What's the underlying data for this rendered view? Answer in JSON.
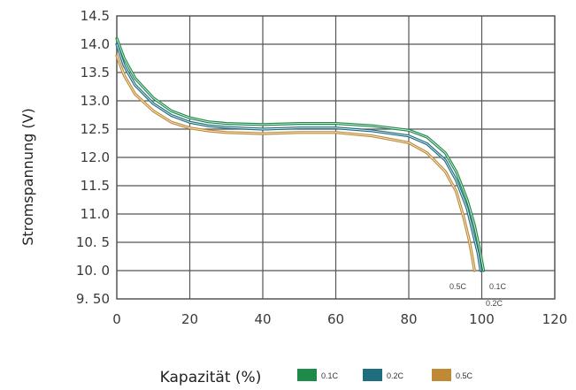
{
  "chart_data": {
    "type": "line",
    "xlabel": "Kapazität (%)",
    "ylabel": "Stromspannung (V)",
    "xlim": [
      0,
      120
    ],
    "ylim": [
      9.5,
      14.5
    ],
    "x_ticks": [
      "0",
      "20",
      "40",
      "60",
      "80",
      "100",
      "120"
    ],
    "y_ticks": [
      "9. 50",
      "10. 0",
      "10. 5",
      "11.0",
      "11.5",
      "12.0",
      "12.5",
      "13.0",
      "13.5",
      "14.0",
      "14.5"
    ],
    "grid": true,
    "legend_position": "bottom",
    "series": [
      {
        "name": "0.1C",
        "color": "#1e8a4a",
        "points": [
          [
            0,
            14.1
          ],
          [
            2,
            13.75
          ],
          [
            5,
            13.4
          ],
          [
            10,
            13.05
          ],
          [
            15,
            12.82
          ],
          [
            20,
            12.7
          ],
          [
            25,
            12.63
          ],
          [
            30,
            12.6
          ],
          [
            40,
            12.58
          ],
          [
            50,
            12.6
          ],
          [
            60,
            12.6
          ],
          [
            70,
            12.56
          ],
          [
            80,
            12.48
          ],
          [
            85,
            12.36
          ],
          [
            90,
            12.08
          ],
          [
            93,
            11.75
          ],
          [
            96,
            11.25
          ],
          [
            98,
            10.8
          ],
          [
            99.5,
            10.35
          ],
          [
            100.5,
            10.0
          ]
        ]
      },
      {
        "name": "0.2C",
        "color": "#1f6e80",
        "points": [
          [
            0,
            14.0
          ],
          [
            2,
            13.62
          ],
          [
            5,
            13.28
          ],
          [
            10,
            12.95
          ],
          [
            15,
            12.74
          ],
          [
            20,
            12.62
          ],
          [
            25,
            12.56
          ],
          [
            30,
            12.53
          ],
          [
            40,
            12.5
          ],
          [
            50,
            12.52
          ],
          [
            60,
            12.52
          ],
          [
            70,
            12.47
          ],
          [
            80,
            12.38
          ],
          [
            85,
            12.24
          ],
          [
            90,
            11.95
          ],
          [
            93,
            11.6
          ],
          [
            96,
            11.1
          ],
          [
            97.5,
            10.7
          ],
          [
            99,
            10.3
          ],
          [
            99.7,
            10.0
          ]
        ]
      },
      {
        "name": "0.5C",
        "color": "#c08a34",
        "points": [
          [
            0,
            13.8
          ],
          [
            2,
            13.45
          ],
          [
            5,
            13.12
          ],
          [
            10,
            12.82
          ],
          [
            15,
            12.62
          ],
          [
            20,
            12.52
          ],
          [
            25,
            12.47
          ],
          [
            30,
            12.44
          ],
          [
            40,
            12.42
          ],
          [
            50,
            12.44
          ],
          [
            60,
            12.44
          ],
          [
            70,
            12.38
          ],
          [
            80,
            12.26
          ],
          [
            85,
            12.08
          ],
          [
            90,
            11.75
          ],
          [
            93,
            11.4
          ],
          [
            95,
            10.95
          ],
          [
            96.5,
            10.55
          ],
          [
            97.5,
            10.2
          ],
          [
            98,
            10.0
          ]
        ]
      }
    ],
    "annotations": [
      "0.5C",
      "0.1C",
      "0.2C"
    ]
  }
}
